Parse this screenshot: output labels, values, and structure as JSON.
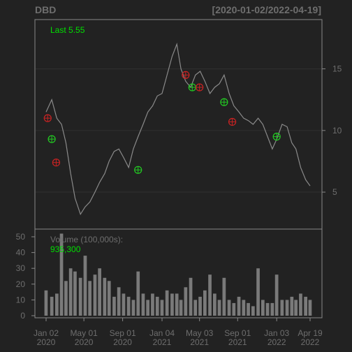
{
  "header": {
    "symbol": "DBD",
    "date_range": "[2020-01-02/2022-04-19]"
  },
  "annotations": {
    "last_label": "Last 5.55",
    "volume_label": "Volume (100,000s):",
    "volume_value": "935,300"
  },
  "colors": {
    "background": "#222222",
    "frame": "#888888",
    "grid": "#303030",
    "price_line": "#8a8a8a",
    "volume_bar": "#7a7a7a",
    "text_muted": "#6e6e6e",
    "text_accent": "#00e000",
    "buy_marker": "#22cc22",
    "sell_marker": "#cc2222"
  },
  "chart_data": [
    {
      "type": "line",
      "title": "DBD",
      "subtitle": "[2020-01-02/2022-04-19]",
      "ylim": [
        2,
        19
      ],
      "y_ticks": [
        5,
        10,
        15
      ],
      "x_ticks": [
        {
          "date": "2020-01-02",
          "label": [
            "Jan 02",
            "2020"
          ]
        },
        {
          "date": "2020-05-01",
          "label": [
            "May 01",
            "2020"
          ]
        },
        {
          "date": "2020-09-01",
          "label": [
            "Sep 01",
            "2020"
          ]
        },
        {
          "date": "2021-01-04",
          "label": [
            "Jan 04",
            "2021"
          ]
        },
        {
          "date": "2021-05-03",
          "label": [
            "May 03",
            "2021"
          ]
        },
        {
          "date": "2021-09-01",
          "label": [
            "Sep 01",
            "2021"
          ]
        },
        {
          "date": "2022-01-03",
          "label": [
            "Jan 03",
            "2022"
          ]
        },
        {
          "date": "2022-04-19",
          "label": [
            "Apr 19",
            "2022"
          ]
        }
      ],
      "x": [
        "2020-01-02",
        "2020-01-20",
        "2020-02-05",
        "2020-02-20",
        "2020-03-05",
        "2020-03-20",
        "2020-04-03",
        "2020-04-20",
        "2020-05-05",
        "2020-05-20",
        "2020-06-05",
        "2020-06-20",
        "2020-07-06",
        "2020-07-20",
        "2020-08-05",
        "2020-08-20",
        "2020-09-04",
        "2020-09-20",
        "2020-10-05",
        "2020-10-20",
        "2020-11-05",
        "2020-11-20",
        "2020-12-05",
        "2020-12-20",
        "2021-01-04",
        "2021-01-20",
        "2021-02-05",
        "2021-02-20",
        "2021-03-05",
        "2021-03-20",
        "2021-04-05",
        "2021-04-20",
        "2021-05-05",
        "2021-05-20",
        "2021-06-05",
        "2021-06-20",
        "2021-07-05",
        "2021-07-20",
        "2021-08-05",
        "2021-08-20",
        "2021-09-05",
        "2021-09-20",
        "2021-10-05",
        "2021-10-20",
        "2021-11-05",
        "2021-11-20",
        "2021-12-05",
        "2021-12-20",
        "2022-01-03",
        "2022-01-20",
        "2022-02-05",
        "2022-02-20",
        "2022-03-05",
        "2022-03-20",
        "2022-04-05",
        "2022-04-19"
      ],
      "series": [
        {
          "values": [
            11.5,
            12.5,
            11.0,
            10.5,
            9.0,
            6.5,
            4.5,
            3.2,
            3.8,
            4.2,
            5.0,
            5.8,
            6.5,
            7.5,
            8.3,
            8.5,
            7.8,
            7.0,
            8.5,
            9.5,
            10.5,
            11.5,
            12.0,
            12.8,
            13.0,
            14.5,
            16.0,
            17.0,
            15.0,
            14.0,
            13.5,
            14.5,
            14.8,
            14.0,
            13.0,
            13.5,
            13.8,
            14.5,
            13.0,
            12.0,
            11.5,
            11.0,
            10.8,
            10.5,
            11.0,
            10.5,
            9.5,
            8.5,
            9.3,
            10.5,
            10.3,
            9.0,
            8.5,
            7.0,
            6.0,
            5.5
          ]
        }
      ],
      "signals": [
        {
          "date": "2020-01-07",
          "price": 11.0,
          "kind": "sell"
        },
        {
          "date": "2020-01-20",
          "price": 9.3,
          "kind": "buy"
        },
        {
          "date": "2020-02-03",
          "price": 7.4,
          "kind": "sell"
        },
        {
          "date": "2020-10-20",
          "price": 6.8,
          "kind": "buy"
        },
        {
          "date": "2021-03-20",
          "price": 14.5,
          "kind": "sell"
        },
        {
          "date": "2021-04-10",
          "price": 13.5,
          "kind": "buy"
        },
        {
          "date": "2021-05-03",
          "price": 13.5,
          "kind": "sell"
        },
        {
          "date": "2021-07-20",
          "price": 12.3,
          "kind": "buy"
        },
        {
          "date": "2021-08-15",
          "price": 10.7,
          "kind": "sell"
        },
        {
          "date": "2022-01-03",
          "price": 9.5,
          "kind": "buy"
        }
      ]
    },
    {
      "type": "bar",
      "title": "Volume (100,000s):",
      "ylim": [
        0,
        55
      ],
      "y_ticks": [
        0,
        10,
        20,
        30,
        40,
        50
      ],
      "x": [
        "2020-01-02",
        "2020-01-20",
        "2020-02-05",
        "2020-02-20",
        "2020-03-05",
        "2020-03-20",
        "2020-04-03",
        "2020-04-20",
        "2020-05-05",
        "2020-05-20",
        "2020-06-05",
        "2020-06-20",
        "2020-07-06",
        "2020-07-20",
        "2020-08-05",
        "2020-08-20",
        "2020-09-04",
        "2020-09-20",
        "2020-10-05",
        "2020-10-20",
        "2020-11-05",
        "2020-11-20",
        "2020-12-05",
        "2020-12-20",
        "2021-01-04",
        "2021-01-20",
        "2021-02-05",
        "2021-02-20",
        "2021-03-05",
        "2021-03-20",
        "2021-04-05",
        "2021-04-20",
        "2021-05-05",
        "2021-05-20",
        "2021-06-05",
        "2021-06-20",
        "2021-07-05",
        "2021-07-20",
        "2021-08-05",
        "2021-08-20",
        "2021-09-05",
        "2021-09-20",
        "2021-10-05",
        "2021-10-20",
        "2021-11-05",
        "2021-11-20",
        "2021-12-05",
        "2021-12-20",
        "2022-01-03",
        "2022-01-20",
        "2022-02-05",
        "2022-02-20",
        "2022-03-05",
        "2022-03-20",
        "2022-04-05",
        "2022-04-19"
      ],
      "values": [
        16,
        12,
        14,
        52,
        22,
        30,
        28,
        24,
        38,
        22,
        26,
        30,
        24,
        22,
        12,
        18,
        14,
        12,
        10,
        28,
        14,
        10,
        14,
        12,
        10,
        16,
        14,
        14,
        10,
        18,
        24,
        10,
        12,
        16,
        26,
        14,
        10,
        24,
        10,
        8,
        12,
        10,
        8,
        6,
        30,
        10,
        8,
        8,
        26,
        10,
        10,
        12,
        10,
        14,
        12,
        10
      ]
    }
  ]
}
